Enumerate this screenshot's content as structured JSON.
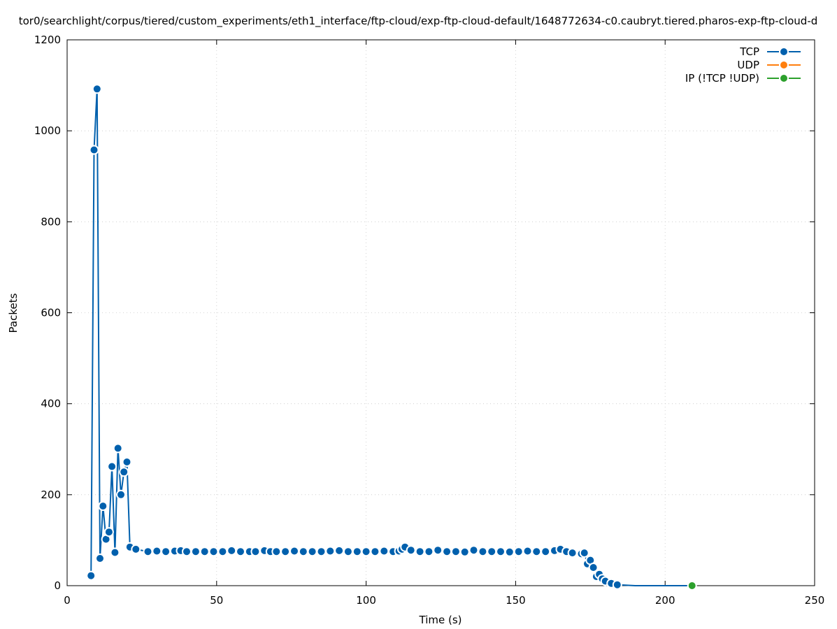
{
  "chart_data": {
    "type": "line",
    "title": "tor0/searchlight/corpus/tiered/custom_experiments/eth1_interface/ftp-cloud/exp-ftp-cloud-default/1648772634-c0.caubryt.tiered.pharos-exp-ftp-cloud-d",
    "xlabel": "Time (s)",
    "ylabel": "Packets",
    "xlim": [
      0,
      250
    ],
    "ylim": [
      0,
      1200
    ],
    "x_ticks": [
      0,
      50,
      100,
      150,
      200,
      250
    ],
    "y_ticks": [
      0,
      200,
      400,
      600,
      800,
      1000,
      1200
    ],
    "x_tick_labels": [
      "0",
      "50",
      "100",
      "150",
      "200",
      "250"
    ],
    "y_tick_labels": [
      "0",
      "200",
      "400",
      "600",
      "800",
      "1000",
      "1200"
    ],
    "grid": true,
    "legend_position": "top-right",
    "series": [
      {
        "name": "TCP",
        "color": "#0060ad",
        "points": [
          [
            8,
            22
          ],
          [
            9,
            958
          ],
          [
            10,
            1092
          ],
          [
            11,
            60
          ],
          [
            12,
            175
          ],
          [
            13,
            102
          ],
          [
            14,
            118
          ],
          [
            15,
            262
          ],
          [
            16,
            73
          ],
          [
            17,
            302
          ],
          [
            18,
            200
          ],
          [
            19,
            250
          ],
          [
            20,
            272
          ],
          [
            21,
            85
          ],
          [
            23,
            80
          ],
          [
            27,
            75
          ],
          [
            30,
            76
          ],
          [
            33,
            75
          ],
          [
            36,
            76
          ],
          [
            38,
            77
          ],
          [
            40,
            75
          ],
          [
            43,
            75
          ],
          [
            46,
            75
          ],
          [
            49,
            75
          ],
          [
            52,
            75
          ],
          [
            55,
            77
          ],
          [
            58,
            75
          ],
          [
            61,
            75
          ],
          [
            63,
            75
          ],
          [
            66,
            77
          ],
          [
            68,
            75
          ],
          [
            70,
            75
          ],
          [
            73,
            75
          ],
          [
            76,
            76
          ],
          [
            79,
            75
          ],
          [
            82,
            75
          ],
          [
            85,
            75
          ],
          [
            88,
            76
          ],
          [
            91,
            77
          ],
          [
            94,
            75
          ],
          [
            97,
            75
          ],
          [
            100,
            75
          ],
          [
            103,
            75
          ],
          [
            106,
            76
          ],
          [
            109,
            75
          ],
          [
            111,
            76
          ],
          [
            112,
            80
          ],
          [
            113,
            85
          ],
          [
            115,
            78
          ],
          [
            118,
            75
          ],
          [
            121,
            75
          ],
          [
            124,
            78
          ],
          [
            127,
            75
          ],
          [
            130,
            75
          ],
          [
            133,
            74
          ],
          [
            136,
            78
          ],
          [
            139,
            75
          ],
          [
            142,
            75
          ],
          [
            145,
            75
          ],
          [
            148,
            74
          ],
          [
            151,
            75
          ],
          [
            154,
            76
          ],
          [
            157,
            75
          ],
          [
            160,
            75
          ],
          [
            163,
            77
          ],
          [
            165,
            80
          ],
          [
            167,
            75
          ],
          [
            169,
            72
          ],
          [
            172,
            70
          ],
          [
            173,
            72
          ],
          [
            174,
            48
          ],
          [
            175,
            56
          ],
          [
            176,
            40
          ],
          [
            177,
            20
          ],
          [
            178,
            25
          ],
          [
            179,
            15
          ],
          [
            180,
            10
          ],
          [
            182,
            5
          ],
          [
            184,
            2
          ],
          [
            190,
            0
          ],
          [
            200,
            0
          ],
          [
            209,
            0
          ]
        ]
      },
      {
        "name": "UDP",
        "color": "#ff7f0e",
        "points": []
      },
      {
        "name": "IP (!TCP  !UDP)",
        "color": "#2ca02c",
        "points": [
          [
            209,
            0
          ]
        ]
      }
    ]
  }
}
